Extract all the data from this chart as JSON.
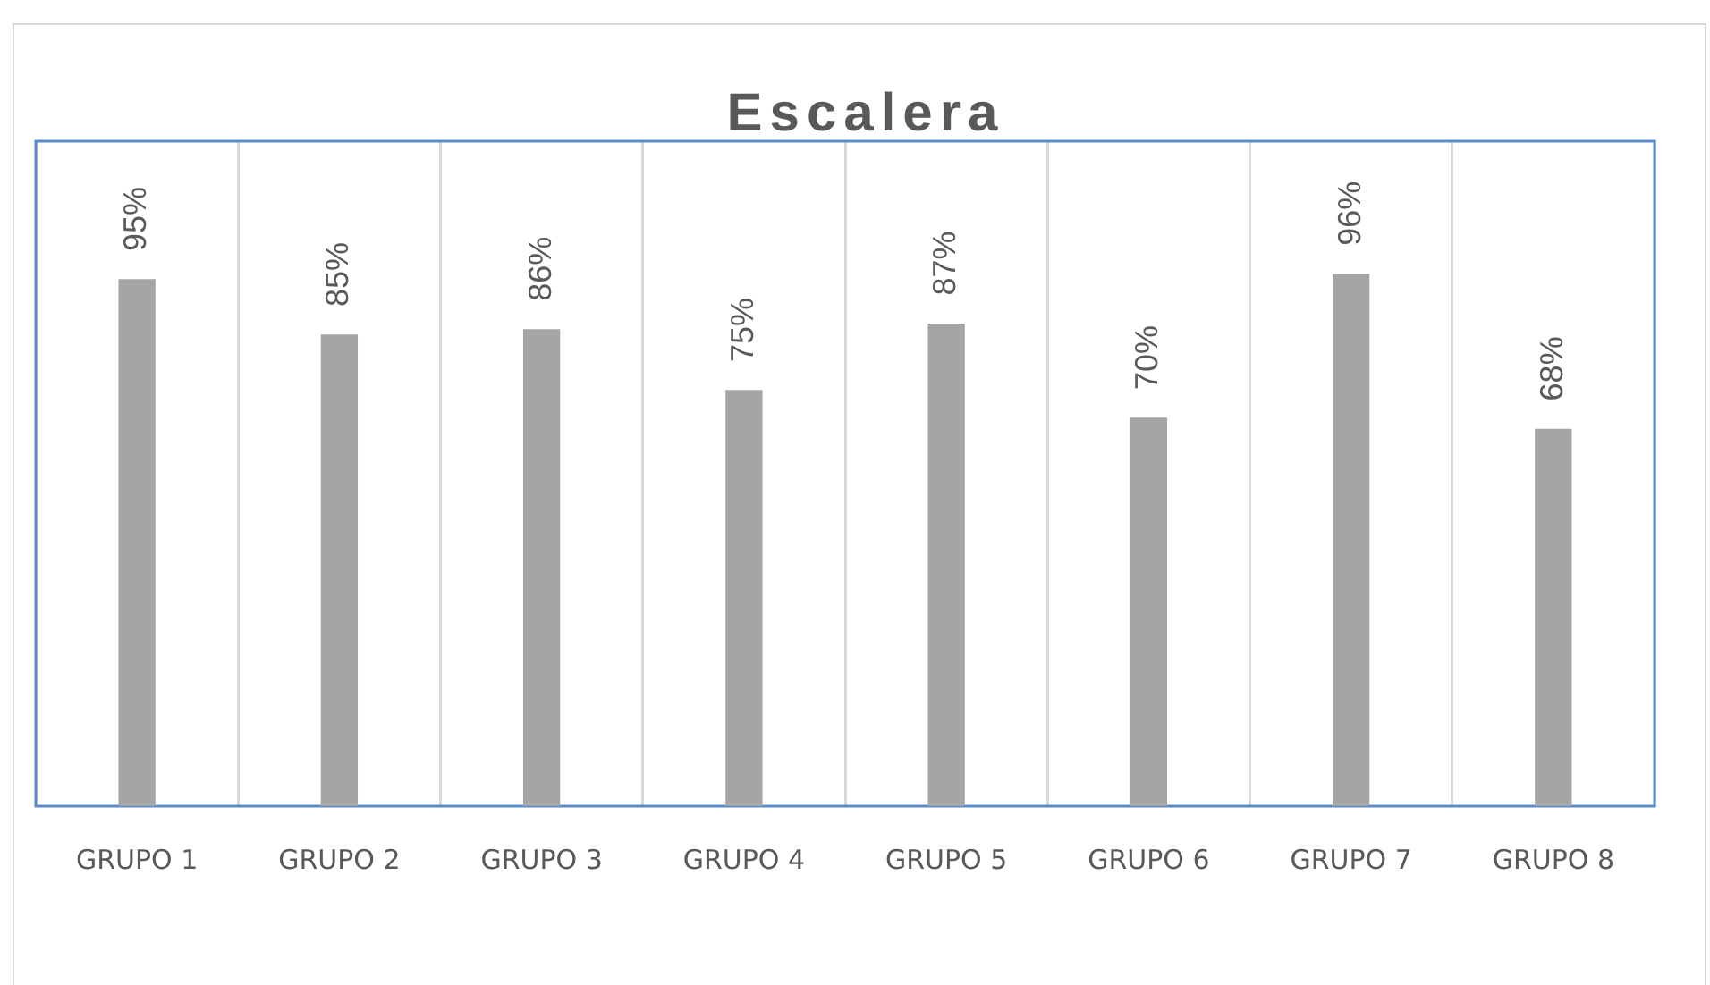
{
  "chart_data": {
    "type": "bar",
    "title": "Escalera",
    "categories": [
      "GRUPO 1",
      "GRUPO 2",
      "GRUPO 3",
      "GRUPO 4",
      "GRUPO 5",
      "GRUPO 6",
      "GRUPO 7",
      "GRUPO 8"
    ],
    "values": [
      95,
      85,
      86,
      75,
      87,
      70,
      96,
      68
    ],
    "value_labels": [
      "95%",
      "85%",
      "86%",
      "75%",
      "87%",
      "70%",
      "96%",
      "68%"
    ],
    "color": "#a5a5a5",
    "ylim": [
      0,
      120
    ],
    "grid": "x",
    "tick_labels": "x"
  }
}
